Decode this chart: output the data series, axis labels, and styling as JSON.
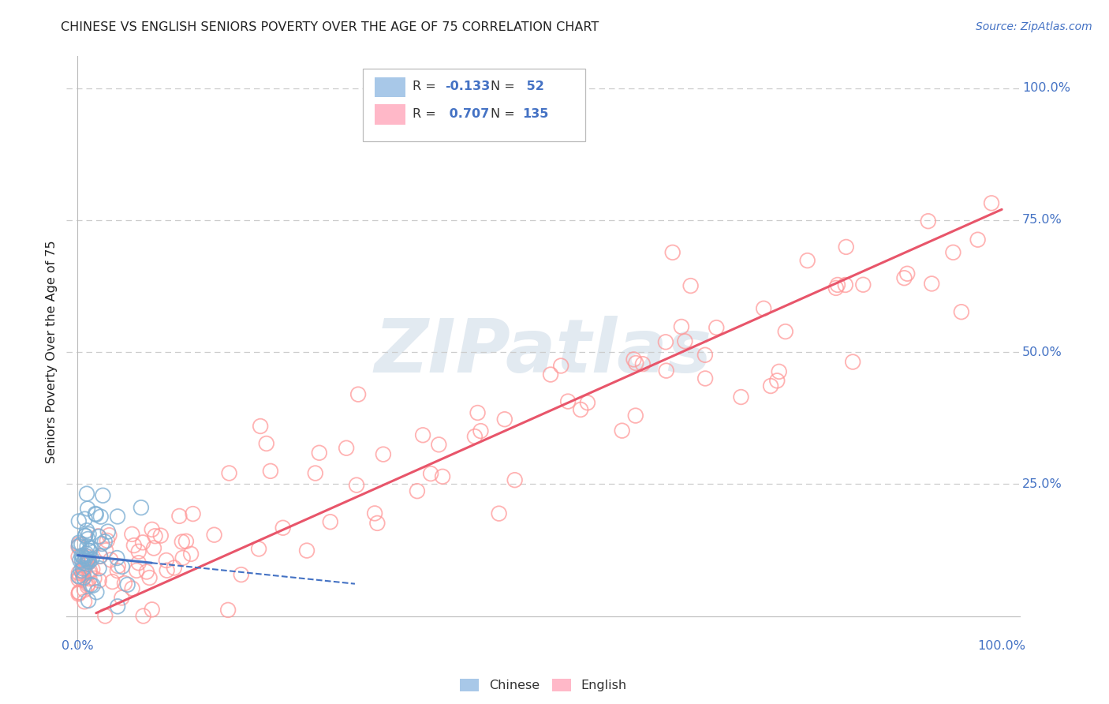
{
  "title": "CHINESE VS ENGLISH SENIORS POVERTY OVER THE AGE OF 75 CORRELATION CHART",
  "source": "Source: ZipAtlas.com",
  "ylabel": "Seniors Poverty Over the Age of 75",
  "legend_chinese_label": "Chinese",
  "legend_english_label": "English",
  "legend_r_chinese": "-0.133",
  "legend_n_chinese": "52",
  "legend_r_english": "0.707",
  "legend_n_english": "135",
  "chinese_face_color": "#A8C8E8",
  "chinese_edge_color": "#7EB0D4",
  "english_face_color": "#FFB8C8",
  "english_edge_color": "#FF9999",
  "chinese_line_color": "#4472C4",
  "english_line_color": "#E8556A",
  "grid_color": "#CCCCCC",
  "title_color": "#222222",
  "source_color": "#4472C4",
  "tick_color": "#4472C4",
  "ylabel_color": "#222222",
  "background_color": "#FFFFFF",
  "watermark_color": "#D0DCE8",
  "watermark_text": "ZIPatlas",
  "watermark_alpha": 0.6
}
